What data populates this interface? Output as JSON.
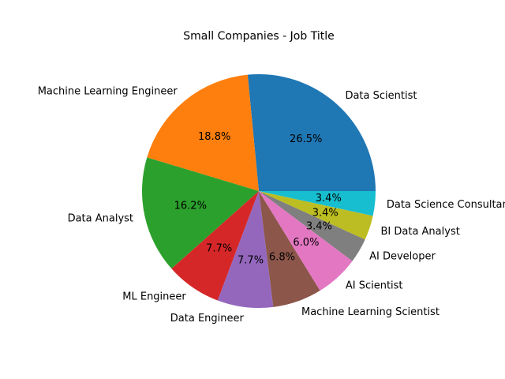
{
  "chart_data": {
    "type": "pie",
    "title": "Small Companies - Job Title",
    "categories": [
      "Data Scientist",
      "Machine Learning Engineer",
      "Data Analyst",
      "ML Engineer",
      "Data Engineer",
      "Machine Learning Scientist",
      "AI Scientist",
      "AI Developer",
      "BI Data Analyst",
      "Data Science Consultant"
    ],
    "values": [
      26.5,
      18.8,
      16.2,
      7.7,
      7.7,
      6.8,
      6.0,
      3.4,
      3.4,
      3.4
    ],
    "value_labels": [
      "26.5%",
      "18.8%",
      "16.2%",
      "7.7%",
      "7.7%",
      "6.8%",
      "6.0%",
      "3.4%",
      "3.4%",
      "3.4%"
    ],
    "colors": [
      "#1f77b4",
      "#ff7f0e",
      "#2ca02c",
      "#d62728",
      "#9467bd",
      "#8c564b",
      "#e377c2",
      "#7f7f7f",
      "#bcbd22",
      "#17becf"
    ],
    "start_angle": "counterclockwise from 3 o'clock",
    "legend": "none"
  }
}
